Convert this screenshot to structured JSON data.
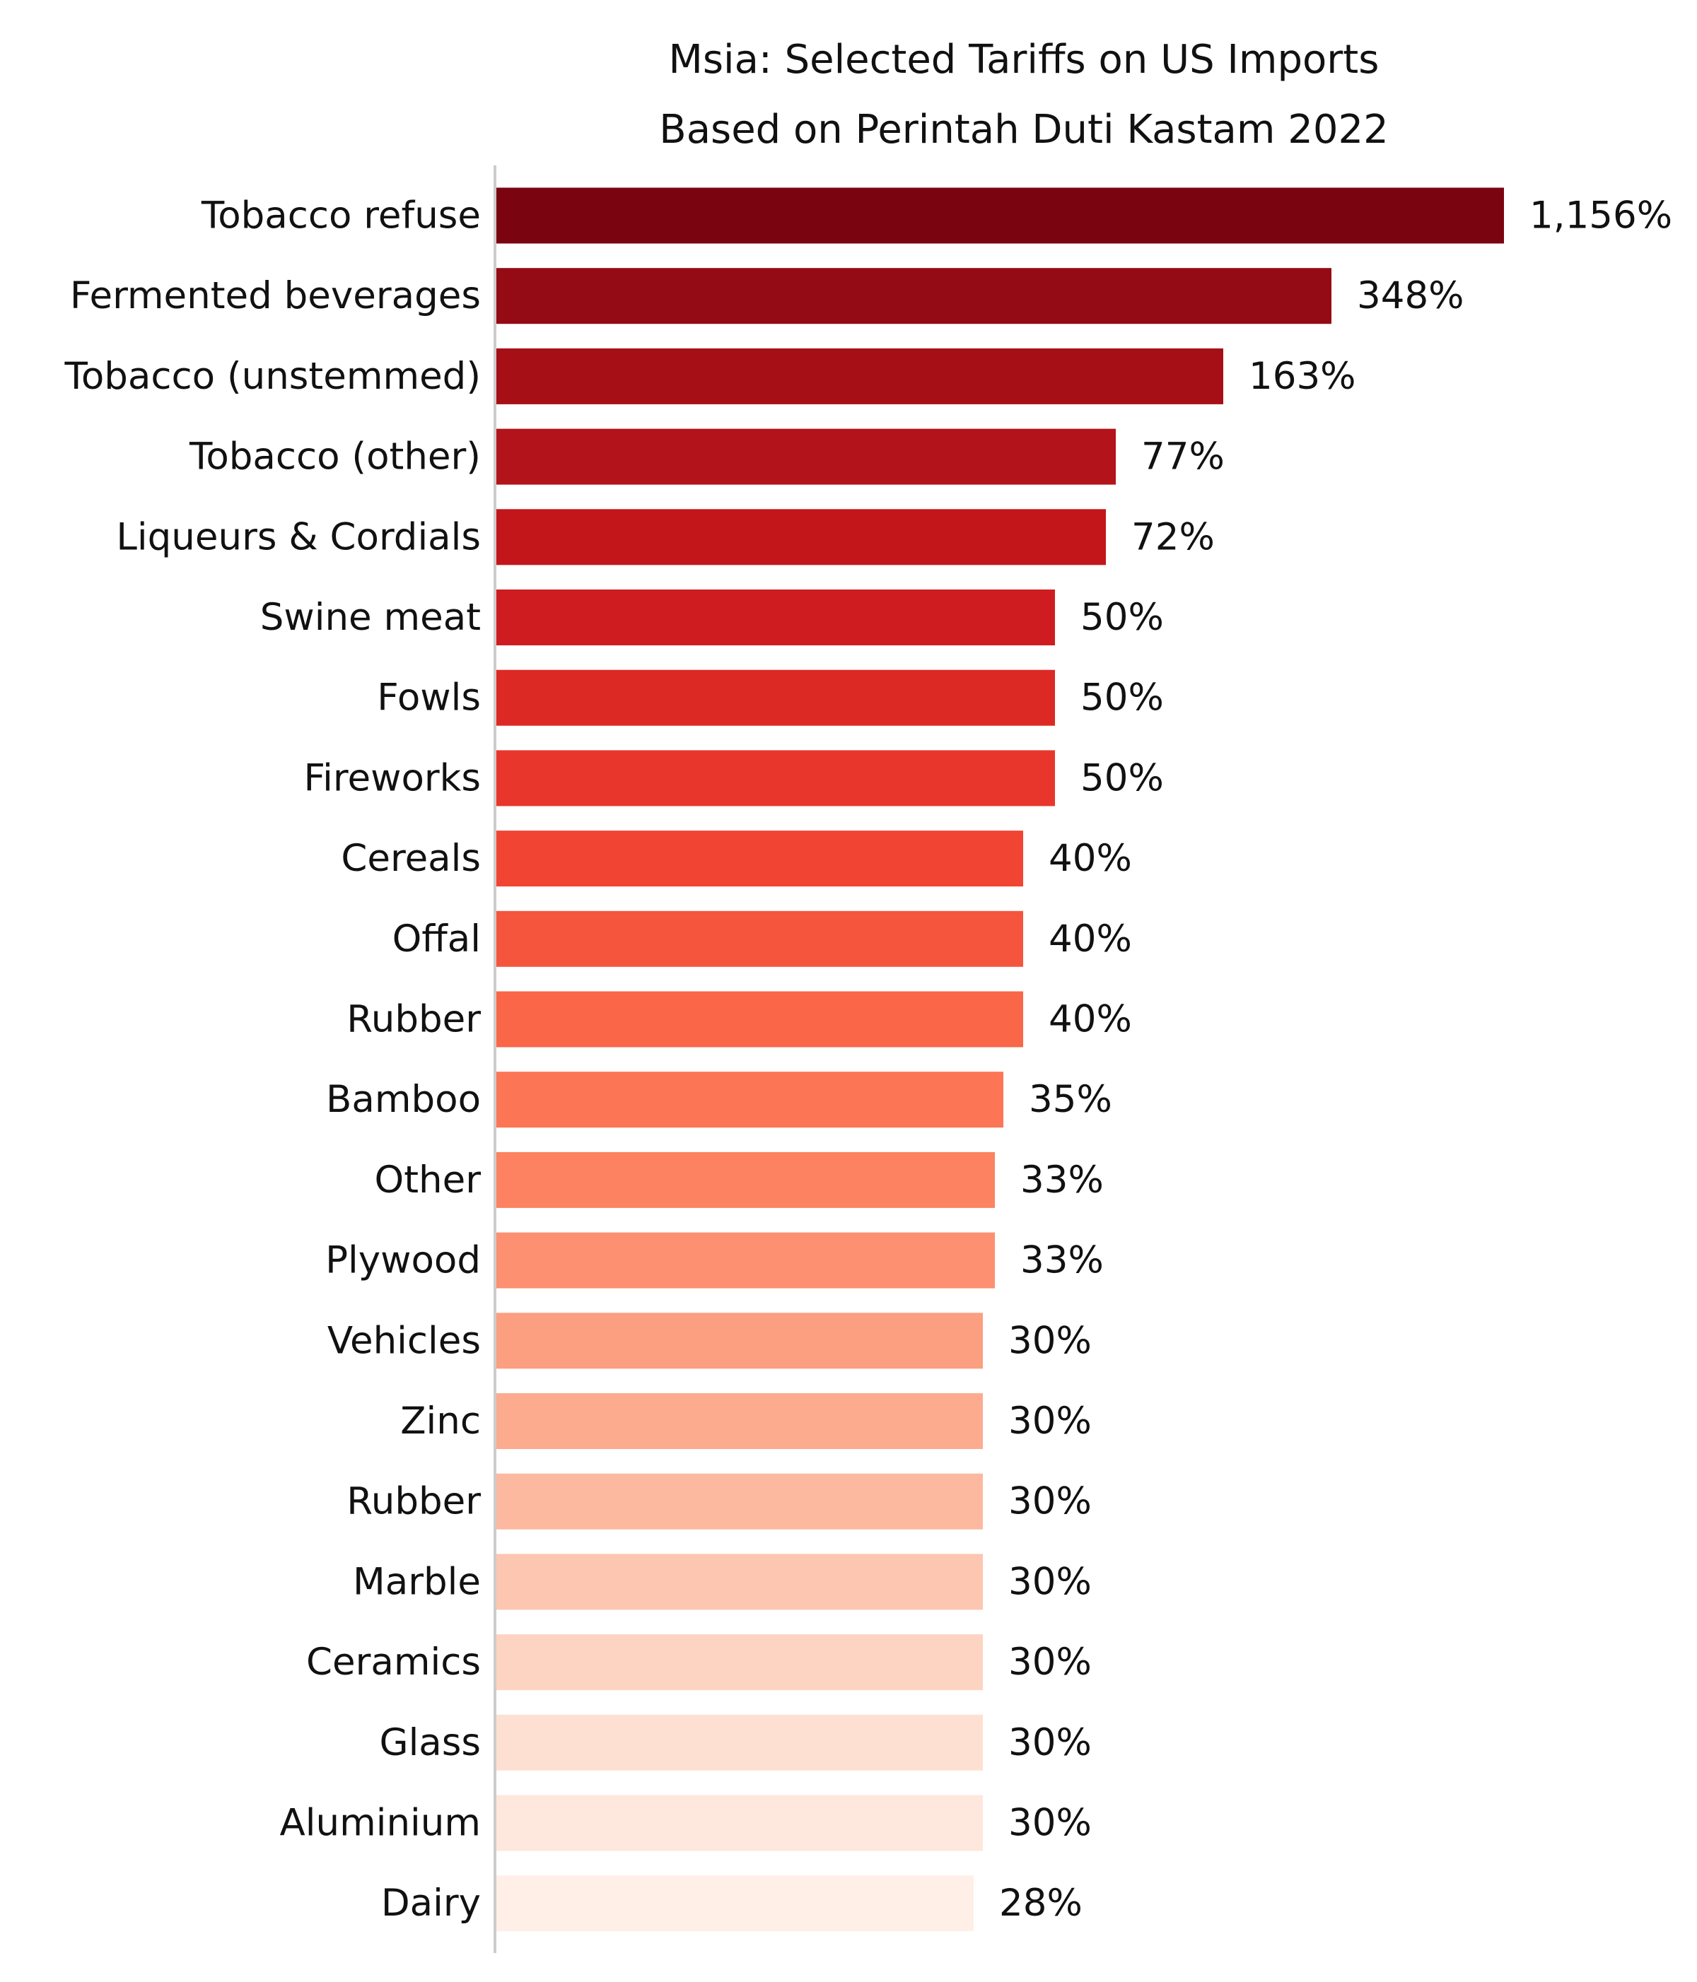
{
  "chart_data": {
    "type": "bar",
    "orientation": "horizontal",
    "title": "Msia: Selected Tariffs on US Imports",
    "subtitle": "Based on Perintah Duti Kastam 2022",
    "xlabel": "",
    "ylabel": "",
    "grid": false,
    "legend": "none",
    "axis_scale": "nonlinear (bar lengths not proportional)",
    "categories": [
      "Tobacco refuse",
      "Fermented beverages",
      "Tobacco (unstemmed)",
      "Tobacco (other)",
      "Liqueurs & Cordials",
      "Swine meat",
      "Fowls",
      "Fireworks",
      "Cereals",
      "Offal",
      "Rubber",
      "Bamboo",
      "Other",
      "Plywood",
      "Vehicles",
      "Zinc",
      "Rubber",
      "Marble",
      "Ceramics",
      "Glass",
      "Aluminium",
      "Dairy"
    ],
    "values": [
      1156,
      348,
      163,
      77,
      72,
      50,
      50,
      50,
      40,
      40,
      40,
      35,
      33,
      33,
      30,
      30,
      30,
      30,
      30,
      30,
      30,
      28
    ],
    "value_labels": [
      "1,156%",
      "348%",
      "163%",
      "77%",
      "72%",
      "50%",
      "50%",
      "50%",
      "40%",
      "40%",
      "40%",
      "35%",
      "33%",
      "33%",
      "30%",
      "30%",
      "30%",
      "30%",
      "30%",
      "30%",
      "30%",
      "28%"
    ],
    "bar_colors": [
      "#7a0510",
      "#940b15",
      "#a50f15",
      "#b3131a",
      "#c2161b",
      "#cf1c20",
      "#dc2924",
      "#e9362c",
      "#f14432",
      "#f5553d",
      "#fa6648",
      "#fc7555",
      "#fc8261",
      "#fc9070",
      "#fc9e80",
      "#fcab8f",
      "#fcb99f",
      "#fdc6b0",
      "#fdd3c1",
      "#fee0d2",
      "#fee7dc",
      "#ffefe7"
    ],
    "axis_color": "#cccccc"
  }
}
